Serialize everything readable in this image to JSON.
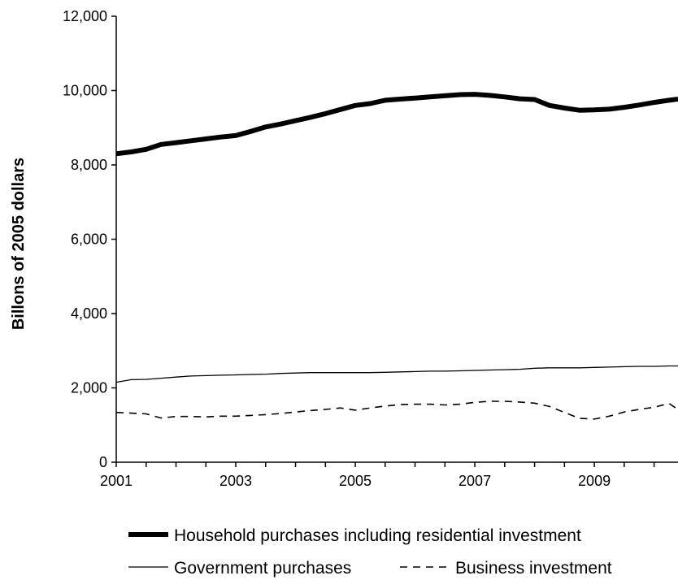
{
  "chart_data": {
    "type": "line",
    "title": "",
    "xlabel": "",
    "ylabel": "Billons of 2005 dollars",
    "xlim": [
      2001,
      2010.4
    ],
    "ylim": [
      0,
      12000
    ],
    "x_ticks": [
      "2001",
      "2003",
      "2005",
      "2007",
      "2009"
    ],
    "y_ticks": [
      "0",
      "2,000",
      "4,000",
      "6,000",
      "8,000",
      "10,000",
      "12,000"
    ],
    "grid": false,
    "legend_position": "bottom",
    "x": [
      2001.0,
      2001.25,
      2001.5,
      2001.75,
      2002.0,
      2002.25,
      2002.5,
      2002.75,
      2003.0,
      2003.25,
      2003.5,
      2003.75,
      2004.0,
      2004.25,
      2004.5,
      2004.75,
      2005.0,
      2005.25,
      2005.5,
      2005.75,
      2006.0,
      2006.25,
      2006.5,
      2006.75,
      2007.0,
      2007.25,
      2007.5,
      2007.75,
      2008.0,
      2008.25,
      2008.5,
      2008.75,
      2009.0,
      2009.25,
      2009.5,
      2009.75,
      2010.0,
      2010.25,
      2010.4
    ],
    "series": [
      {
        "name": "Household purchases including residential investment",
        "style": "thick-solid",
        "color": "#000000",
        "values": [
          8300,
          8350,
          8420,
          8550,
          8600,
          8650,
          8700,
          8750,
          8790,
          8900,
          9020,
          9100,
          9190,
          9280,
          9380,
          9490,
          9600,
          9650,
          9740,
          9770,
          9800,
          9830,
          9860,
          9890,
          9900,
          9870,
          9830,
          9780,
          9760,
          9600,
          9530,
          9470,
          9480,
          9500,
          9550,
          9610,
          9680,
          9740,
          9770
        ]
      },
      {
        "name": "Government purchases",
        "style": "thin-solid",
        "color": "#000000",
        "values": [
          2150,
          2220,
          2230,
          2260,
          2290,
          2320,
          2330,
          2340,
          2350,
          2360,
          2370,
          2390,
          2400,
          2410,
          2410,
          2410,
          2410,
          2410,
          2420,
          2430,
          2440,
          2450,
          2450,
          2460,
          2470,
          2480,
          2490,
          2500,
          2530,
          2540,
          2540,
          2540,
          2550,
          2560,
          2570,
          2580,
          2580,
          2590,
          2590
        ]
      },
      {
        "name": "Business investment",
        "style": "dashed",
        "color": "#000000",
        "values": [
          1340,
          1320,
          1300,
          1190,
          1230,
          1230,
          1220,
          1240,
          1240,
          1260,
          1280,
          1310,
          1350,
          1390,
          1420,
          1460,
          1400,
          1460,
          1510,
          1550,
          1560,
          1560,
          1540,
          1560,
          1610,
          1640,
          1640,
          1620,
          1590,
          1500,
          1340,
          1180,
          1160,
          1240,
          1350,
          1420,
          1480,
          1580,
          1420
        ]
      }
    ]
  }
}
